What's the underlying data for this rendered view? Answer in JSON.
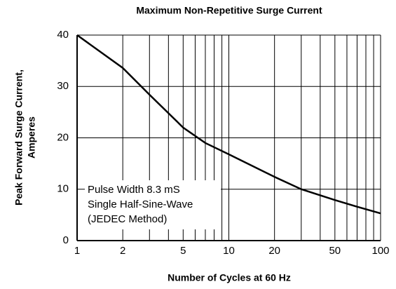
{
  "chart_data": {
    "type": "line",
    "title": "Maximum Non-Repetitive Surge Current",
    "x_label": "Number of Cycles at 60 Hz",
    "y_label": [
      "Peak Forward Surge Current,",
      "Amperes"
    ],
    "annotation": [
      "Pulse Width 8.3 mS",
      "Single Half-Sine-Wave",
      "(JEDEC Method)"
    ],
    "x_scale": "log",
    "xlim": [
      1,
      100
    ],
    "xticks": [
      1,
      2,
      5,
      10,
      20,
      50,
      100
    ],
    "x_minor_grid": [
      3,
      4,
      6,
      7,
      8,
      9,
      30,
      40,
      60,
      70,
      80,
      90
    ],
    "ylim": [
      0,
      40
    ],
    "yticks": [
      0,
      10,
      20,
      30,
      40
    ],
    "grid": true,
    "series": [
      {
        "color": "#000000",
        "x": [
          1,
          2,
          3,
          5,
          7,
          10,
          20,
          30,
          50,
          70,
          100
        ],
        "values": [
          40,
          33.6,
          28.4,
          22,
          19,
          16.8,
          12.4,
          10,
          7.9,
          6.6,
          5.3
        ]
      }
    ]
  }
}
